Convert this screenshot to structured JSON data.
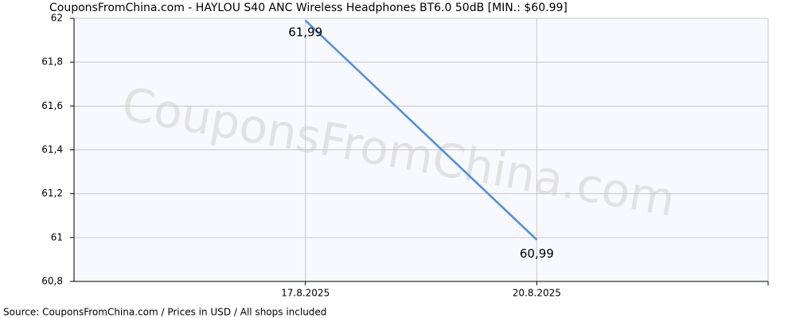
{
  "chart_data": {
    "type": "line",
    "title": "CouponsFromChina.com - HAYLOU S40 ANC Wireless Headphones BT6.0 50dB [MIN.: $60.99]",
    "watermark": "CouponsFromChina.com",
    "source": "Source: CouponsFromChina.com / Prices in USD / All shops included",
    "categories": [
      "17.8.2025",
      "20.8.2025"
    ],
    "series": [
      {
        "name": "Price",
        "color": "#4a8ee6",
        "values": [
          61.99,
          60.99
        ],
        "value_labels": [
          "61,99",
          "60,99"
        ]
      }
    ],
    "ylim": [
      60.8,
      62
    ],
    "yticks": [
      {
        "value": 60.8,
        "label": "60,8"
      },
      61,
      {
        "value": 61.2,
        "label": "61,2"
      },
      {
        "value": 61.4,
        "label": "61,4"
      },
      {
        "value": 61.6,
        "label": "61,6"
      },
      {
        "value": 61.8,
        "label": "61,8"
      },
      62
    ],
    "grid": true
  }
}
